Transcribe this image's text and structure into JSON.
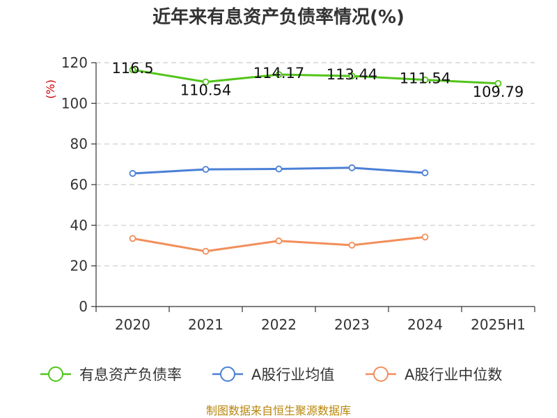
{
  "chart_data": {
    "type": "line",
    "title": "近年来有息资产负债率情况(%)",
    "ylabel": "(%)",
    "categories": [
      "2020",
      "2021",
      "2022",
      "2023",
      "2024",
      "2025H1"
    ],
    "yticks": [
      0,
      20,
      40,
      60,
      80,
      100,
      120
    ],
    "ylim": [
      0,
      120
    ],
    "grid": true,
    "legend_position": "bottom",
    "series": [
      {
        "name": "有息资产负债率",
        "color": "#52c41a",
        "values": [
          116.5,
          110.54,
          114.17,
          113.44,
          111.54,
          109.79
        ],
        "labels": [
          "116.5",
          "110.54",
          "114.17",
          "113.44",
          "111.54",
          "109.79"
        ]
      },
      {
        "name": "A股行业均值",
        "color": "#4a7fd6",
        "values": [
          65.5,
          67.5,
          67.7,
          68.3,
          65.8,
          null
        ]
      },
      {
        "name": "A股行业中位数",
        "color": "#f28e5a",
        "values": [
          33.5,
          27.2,
          32.3,
          30.2,
          34.2,
          null
        ]
      }
    ]
  },
  "footer": {
    "source": "制图数据来自恒生聚源数据库"
  }
}
